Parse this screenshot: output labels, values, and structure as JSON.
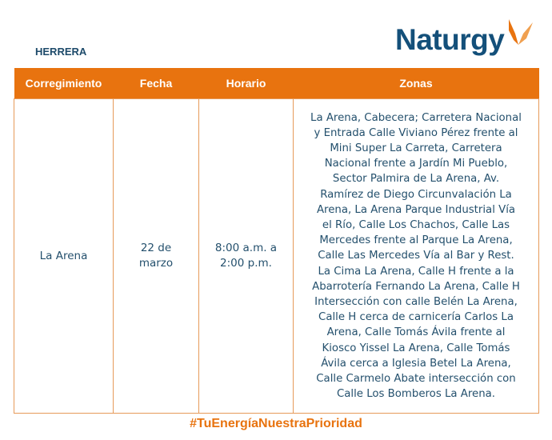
{
  "header": {
    "region": "HERRERA",
    "logo_text": "Naturgy",
    "brand_color": "#e8730f",
    "text_color": "#14507a"
  },
  "table": {
    "columns": [
      "Corregimiento",
      "Fecha",
      "Horario",
      "Zonas"
    ],
    "rows": [
      {
        "corregimiento": "La Arena",
        "fecha": [
          "22 de",
          "marzo"
        ],
        "horario": [
          "8:00 a.m. a",
          "2:00 p.m."
        ],
        "zonas": [
          "La Arena, Cabecera; Carretera Nacional",
          "y Entrada Calle Viviano Pérez frente al",
          "Mini Super La Carreta, Carretera",
          "Nacional frente a Jardín Mi Pueblo,",
          "Sector Palmira de La Arena, Av.",
          "Ramírez de Diego Circunvalación La",
          "Arena, La Arena Parque Industrial Vía",
          "el Río, Calle Los Chachos, Calle Las",
          "Mercedes frente al Parque La Arena,",
          "Calle Las Mercedes Vía al Bar y Rest.",
          "La Cima La Arena, Calle H frente a la",
          "Abarrotería Fernando La Arena, Calle H",
          "Intersección con calle Belén La Arena,",
          "Calle H cerca de carnicería Carlos La",
          "Arena, Calle Tomás Ávila frente al",
          "Kiosco Yissel La Arena, Calle Tomás",
          "Ávila cerca a Iglesia Betel La Arena,",
          "Calle Carmelo Abate intersección con",
          "Calle Los Bomberos La Arena."
        ]
      }
    ]
  },
  "footer": {
    "hashtag": "#TuEnergíaNuestraPrioridad"
  }
}
